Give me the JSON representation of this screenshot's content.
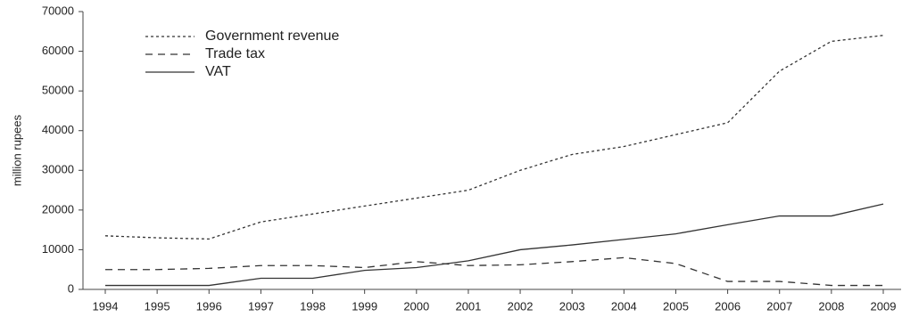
{
  "chart_data": {
    "type": "line",
    "y_label": "million rupees",
    "categories": [
      "1994",
      "1995",
      "1996",
      "1997",
      "1998",
      "1999",
      "2000",
      "2001",
      "2002",
      "2003",
      "2004",
      "2005",
      "2006",
      "2007",
      "2008",
      "2009"
    ],
    "series": [
      {
        "name": "Government revenue",
        "color": "#333333",
        "dash": "dotted",
        "values": [
          13500,
          13000,
          12700,
          17000,
          19000,
          21000,
          23000,
          25000,
          30000,
          34000,
          36000,
          39000,
          42000,
          55000,
          62500,
          64000
        ]
      },
      {
        "name": "Trade tax",
        "color": "#333333",
        "dash": "dashed",
        "values": [
          5000,
          5000,
          5300,
          6000,
          6000,
          5500,
          7000,
          6000,
          6200,
          7000,
          8000,
          6500,
          2000,
          2000,
          1000,
          1000
        ]
      },
      {
        "name": "VAT",
        "color": "#333333",
        "dash": "solid",
        "values": [
          1000,
          1000,
          1000,
          2800,
          2800,
          4800,
          5500,
          7200,
          10000,
          11200,
          12600,
          14000,
          16300,
          18500,
          18500,
          21500
        ]
      }
    ],
    "ylim": [
      0,
      70000
    ],
    "yticks": [
      0,
      10000,
      20000,
      30000,
      40000,
      50000,
      60000,
      70000
    ],
    "legend": "top-left"
  }
}
